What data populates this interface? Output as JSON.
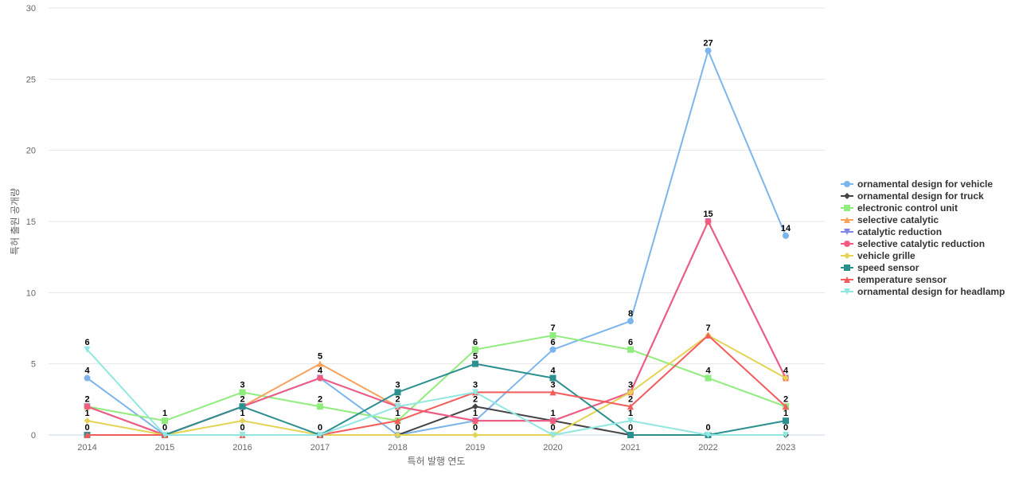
{
  "chart_data": {
    "type": "line",
    "title": "",
    "xlabel": "특허 발행 연도",
    "ylabel": "특허 출원 공개량",
    "categories": [
      "2014",
      "2015",
      "2016",
      "2017",
      "2018",
      "2019",
      "2020",
      "2021",
      "2022",
      "2023"
    ],
    "ylim": [
      0,
      30
    ],
    "yticks": [
      0,
      5,
      10,
      15,
      20,
      25,
      30
    ],
    "grid": true,
    "legend_position": "right",
    "series": [
      {
        "name": "ornamental design for vehicle",
        "color": "#7cb5ec",
        "marker": "circle",
        "values": [
          4,
          0,
          2,
          4,
          0,
          1,
          6,
          8,
          27,
          14
        ]
      },
      {
        "name": "ornamental design for truck",
        "color": "#434348",
        "marker": "diamond",
        "values": [
          0,
          0,
          0,
          0,
          0,
          2,
          1,
          0,
          0,
          0
        ]
      },
      {
        "name": "electronic control unit",
        "color": "#90ed7d",
        "marker": "square",
        "values": [
          2,
          1,
          3,
          2,
          1,
          6,
          7,
          6,
          4,
          2
        ]
      },
      {
        "name": "selective catalytic",
        "color": "#f7a35c",
        "marker": "triangle",
        "values": [
          2,
          0,
          2,
          5,
          2,
          1,
          1,
          3,
          15,
          4
        ]
      },
      {
        "name": "catalytic reduction",
        "color": "#8085e9",
        "marker": "triangle-down",
        "values": [
          2,
          0,
          2,
          4,
          2,
          1,
          1,
          3,
          15,
          4
        ]
      },
      {
        "name": "selective catalytic reduction",
        "color": "#f15c80",
        "marker": "circle",
        "values": [
          2,
          0,
          2,
          4,
          2,
          1,
          1,
          3,
          15,
          4
        ]
      },
      {
        "name": "vehicle grille",
        "color": "#e4d354",
        "marker": "diamond",
        "values": [
          1,
          0,
          1,
          0,
          0,
          0,
          0,
          3,
          7,
          4
        ]
      },
      {
        "name": "speed sensor",
        "color": "#2b908f",
        "marker": "square",
        "values": [
          0,
          0,
          2,
          0,
          3,
          5,
          4,
          0,
          0,
          1
        ]
      },
      {
        "name": "temperature sensor",
        "color": "#f45b5b",
        "marker": "triangle",
        "values": [
          0,
          0,
          0,
          0,
          1,
          3,
          3,
          2,
          7,
          2
        ]
      },
      {
        "name": "ornamental design for headlamp",
        "color": "#91e8e1",
        "marker": "triangle-down",
        "values": [
          6,
          0,
          0,
          0,
          2,
          3,
          0,
          1,
          0,
          0
        ]
      }
    ],
    "data_labels": [
      {
        "x": "2014",
        "y": 6
      },
      {
        "x": "2014",
        "y": 4
      },
      {
        "x": "2014",
        "y": 2
      },
      {
        "x": "2014",
        "y": 1
      },
      {
        "x": "2014",
        "y": 0
      },
      {
        "x": "2015",
        "y": 1
      },
      {
        "x": "2015",
        "y": 0
      },
      {
        "x": "2016",
        "y": 3
      },
      {
        "x": "2016",
        "y": 2
      },
      {
        "x": "2016",
        "y": 1
      },
      {
        "x": "2016",
        "y": 0
      },
      {
        "x": "2017",
        "y": 5
      },
      {
        "x": "2017",
        "y": 4
      },
      {
        "x": "2017",
        "y": 2
      },
      {
        "x": "2017",
        "y": 0
      },
      {
        "x": "2018",
        "y": 3
      },
      {
        "x": "2018",
        "y": 2
      },
      {
        "x": "2018",
        "y": 1
      },
      {
        "x": "2018",
        "y": 0
      },
      {
        "x": "2019",
        "y": 6
      },
      {
        "x": "2019",
        "y": 5
      },
      {
        "x": "2019",
        "y": 3
      },
      {
        "x": "2019",
        "y": 2
      },
      {
        "x": "2019",
        "y": 1
      },
      {
        "x": "2019",
        "y": 0
      },
      {
        "x": "2020",
        "y": 7
      },
      {
        "x": "2020",
        "y": 6
      },
      {
        "x": "2020",
        "y": 4
      },
      {
        "x": "2020",
        "y": 3
      },
      {
        "x": "2020",
        "y": 1
      },
      {
        "x": "2020",
        "y": 0
      },
      {
        "x": "2021",
        "y": 8
      },
      {
        "x": "2021",
        "y": 6
      },
      {
        "x": "2021",
        "y": 3
      },
      {
        "x": "2021",
        "y": 2
      },
      {
        "x": "2021",
        "y": 1
      },
      {
        "x": "2021",
        "y": 0
      },
      {
        "x": "2022",
        "y": 27
      },
      {
        "x": "2022",
        "y": 15
      },
      {
        "x": "2022",
        "y": 7
      },
      {
        "x": "2022",
        "y": 4
      },
      {
        "x": "2022",
        "y": 0
      },
      {
        "x": "2023",
        "y": 14
      },
      {
        "x": "2023",
        "y": 4
      },
      {
        "x": "2023",
        "y": 2
      },
      {
        "x": "2023",
        "y": 1
      },
      {
        "x": "2023",
        "y": 0
      }
    ]
  }
}
